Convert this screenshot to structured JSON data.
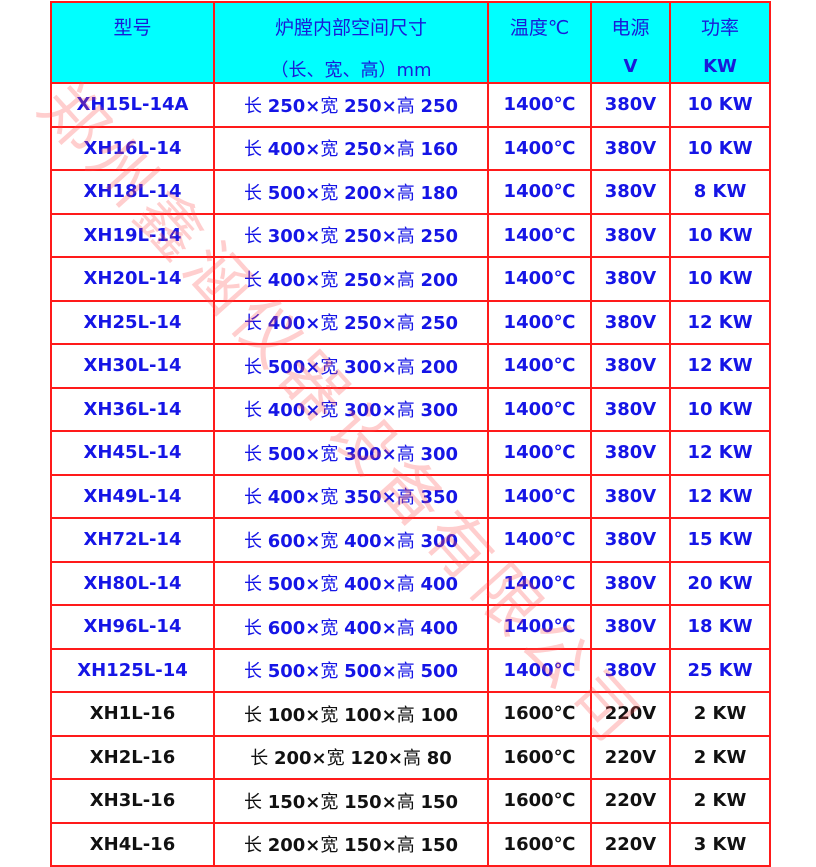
{
  "watermark": "郑州鑫涵仪器设备有限公司",
  "colors": {
    "header_bg": "#00ffff",
    "border": "#ff1a1a",
    "text_blue": "#1515e6",
    "text_black": "#111111"
  },
  "header": {
    "model": "型号",
    "size": "炉膛内部空间尺寸",
    "size_unit": "（长、宽、高）mm",
    "temp": "温度℃",
    "power_supply": "电源",
    "power_supply_unit": "V",
    "power": "功率",
    "power_unit": "KW"
  },
  "rows": [
    {
      "model": "XH15L-14A",
      "l": "长",
      "a": "250×",
      "w": "宽",
      "b": "250×",
      "h": "高",
      "c": "250",
      "temp": "1400℃",
      "volt": "380V",
      "power": "10 KW",
      "color": "blue"
    },
    {
      "model": "XH16L-14",
      "l": "长",
      "a": "400×",
      "w": "宽",
      "b": "250×",
      "h": "高",
      "c": "160",
      "temp": "1400℃",
      "volt": "380V",
      "power": "10 KW",
      "color": "blue"
    },
    {
      "model": "XH18L-14",
      "l": "长",
      "a": "500×",
      "w": "宽",
      "b": "200×",
      "h": "高",
      "c": "180",
      "temp": "1400℃",
      "volt": "380V",
      "power": "8 KW",
      "color": "blue"
    },
    {
      "model": "XH19L-14",
      "l": "长",
      "a": "300×",
      "w": "宽",
      "b": "250×",
      "h": "高",
      "c": "250",
      "temp": "1400℃",
      "volt": "380V",
      "power": "10 KW",
      "color": "blue"
    },
    {
      "model": "XH20L-14",
      "l": "长",
      "a": "400×",
      "w": "宽",
      "b": "250×",
      "h": "高",
      "c": "200",
      "temp": "1400℃",
      "volt": "380V",
      "power": "10 KW",
      "color": "blue"
    },
    {
      "model": "XH25L-14",
      "l": "长",
      "a": "400×",
      "w": "宽",
      "b": "250×",
      "h": "高",
      "c": "250",
      "temp": "1400℃",
      "volt": "380V",
      "power": "12 KW",
      "color": "blue"
    },
    {
      "model": "XH30L-14",
      "l": "长",
      "a": "500×",
      "w": "宽",
      "b": "300×",
      "h": "高",
      "c": "200",
      "temp": "1400℃",
      "volt": "380V",
      "power": "12 KW",
      "color": "blue"
    },
    {
      "model": "XH36L-14",
      "l": "长",
      "a": "400×",
      "w": "宽",
      "b": "300×",
      "h": "高",
      "c": "300",
      "temp": "1400℃",
      "volt": "380V",
      "power": "10 KW",
      "color": "blue"
    },
    {
      "model": "XH45L-14",
      "l": "长",
      "a": "500×",
      "w": "宽",
      "b": "300×",
      "h": "高",
      "c": "300",
      "temp": "1400℃",
      "volt": "380V",
      "power": "12 KW",
      "color": "blue"
    },
    {
      "model": "XH49L-14",
      "l": "长",
      "a": "400×",
      "w": "宽",
      "b": "350×",
      "h": "高",
      "c": "350",
      "temp": "1400℃",
      "volt": "380V",
      "power": "12 KW",
      "color": "blue"
    },
    {
      "model": "XH72L-14",
      "l": "长",
      "a": "600×",
      "w": "宽",
      "b": "400×",
      "h": "高",
      "c": "300",
      "temp": "1400℃",
      "volt": "380V",
      "power": "15 KW",
      "color": "blue"
    },
    {
      "model": "XH80L-14",
      "l": "长",
      "a": "500×",
      "w": "宽",
      "b": "400×",
      "h": "高",
      "c": "400",
      "temp": "1400℃",
      "volt": "380V",
      "power": "20 KW",
      "color": "blue"
    },
    {
      "model": "XH96L-14",
      "l": "长",
      "a": "600×",
      "w": "宽",
      "b": "400×",
      "h": "高",
      "c": "400",
      "temp": "1400℃",
      "volt": "380V",
      "power": "18 KW",
      "color": "blue"
    },
    {
      "model": "XH125L-14",
      "l": "长",
      "a": "500×",
      "w": "宽",
      "b": "500×",
      "h": "高",
      "c": "500",
      "temp": "1400℃",
      "volt": "380V",
      "power": "25 KW",
      "color": "blue"
    },
    {
      "model": "XH1L-16",
      "l": "长",
      "a": "100×",
      "w": "宽",
      "b": "100×",
      "h": "高",
      "c": "100",
      "temp": "1600℃",
      "volt": "220V",
      "power": "2 KW",
      "color": "black"
    },
    {
      "model": "XH2L-16",
      "l": "长",
      "a": "200×",
      "w": "宽",
      "b": "120×",
      "h": "高",
      "c": "80",
      "temp": "1600℃",
      "volt": "220V",
      "power": "2 KW",
      "color": "black"
    },
    {
      "model": "XH3L-16",
      "l": "长",
      "a": "150×",
      "w": "宽",
      "b": "150×",
      "h": "高",
      "c": "150",
      "temp": "1600℃",
      "volt": "220V",
      "power": "2 KW",
      "color": "black"
    },
    {
      "model": "XH4L-16",
      "l": "长",
      "a": "200×",
      "w": "宽",
      "b": "150×",
      "h": "高",
      "c": "150",
      "temp": "1600℃",
      "volt": "220V",
      "power": "3 KW",
      "color": "black"
    }
  ]
}
